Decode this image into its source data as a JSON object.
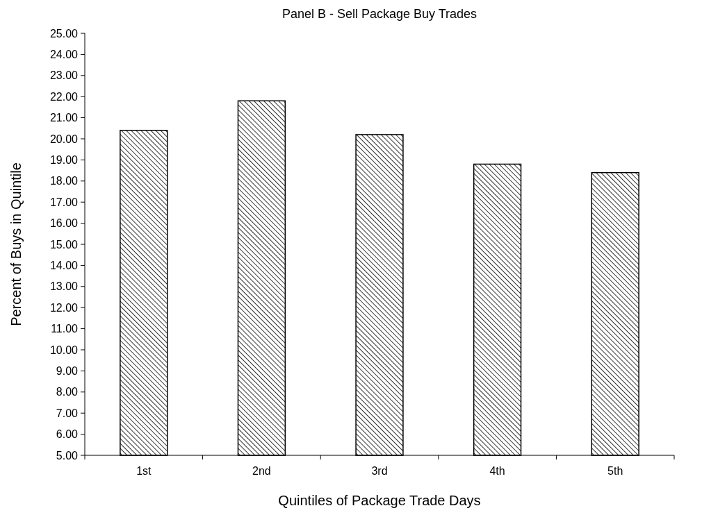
{
  "chart_data": {
    "type": "bar",
    "title": "Panel B - Sell Package Buy Trades",
    "xlabel": "Quintiles of Package Trade Days",
    "ylabel": "Percent of Buys in Quintile",
    "categories": [
      "1st",
      "2nd",
      "3rd",
      "4th",
      "5th"
    ],
    "values": [
      20.4,
      21.8,
      20.2,
      18.8,
      18.4
    ],
    "color": "#000000",
    "ylim": [
      5,
      25
    ],
    "yticks": [
      {
        "value": 5,
        "label": "5.00"
      },
      {
        "value": 6,
        "label": "6.00"
      },
      {
        "value": 7,
        "label": "7.00"
      },
      {
        "value": 8,
        "label": "8.00"
      },
      {
        "value": 9,
        "label": "9.00"
      },
      {
        "value": 10,
        "label": "10.00"
      },
      {
        "value": 11,
        "label": "11.00"
      },
      {
        "value": 12,
        "label": "12.00"
      },
      {
        "value": 13,
        "label": "13.00"
      },
      {
        "value": 14,
        "label": "14.00"
      },
      {
        "value": 15,
        "label": "15.00"
      },
      {
        "value": 16,
        "label": "16.00"
      },
      {
        "value": 17,
        "label": "17.00"
      },
      {
        "value": 18,
        "label": "18.00"
      },
      {
        "value": 19,
        "label": "19.00"
      },
      {
        "value": 20,
        "label": "20.00"
      },
      {
        "value": 21,
        "label": "21.00"
      },
      {
        "value": 22,
        "label": "22.00"
      },
      {
        "value": 23,
        "label": "23.00"
      },
      {
        "value": 24,
        "label": "24.00"
      },
      {
        "value": 25,
        "label": "25.00"
      }
    ]
  }
}
